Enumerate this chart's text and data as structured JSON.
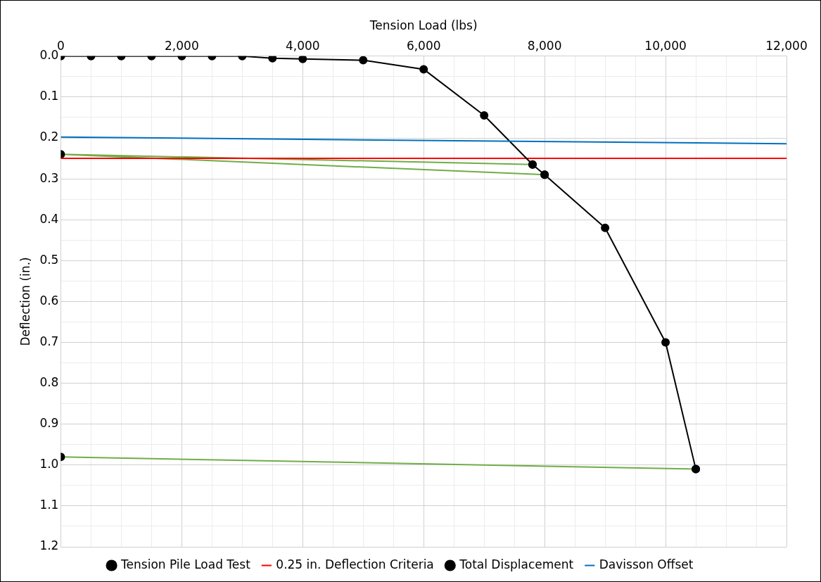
{
  "chart_data": {
    "type": "line",
    "xlabel": "Tension Load (lbs)",
    "ylabel": "Deflection (in.)",
    "xlim": [
      0,
      12000
    ],
    "ylim": [
      1.2,
      0
    ],
    "xticks": [
      {
        "value": 0,
        "label": "0"
      },
      {
        "value": 500,
        "label": null
      },
      {
        "value": 1000,
        "label": null
      },
      {
        "value": 1500,
        "label": null
      },
      {
        "value": 2000,
        "label": "2,000"
      },
      {
        "value": 2500,
        "label": null
      },
      {
        "value": 3000,
        "label": null
      },
      {
        "value": 3500,
        "label": null
      },
      {
        "value": 4000,
        "label": "4,000"
      },
      {
        "value": 4500,
        "label": null
      },
      {
        "value": 5000,
        "label": null
      },
      {
        "value": 5500,
        "label": null
      },
      {
        "value": 6000,
        "label": "6,000"
      },
      {
        "value": 6500,
        "label": null
      },
      {
        "value": 7000,
        "label": null
      },
      {
        "value": 7500,
        "label": null
      },
      {
        "value": 8000,
        "label": "8,000"
      },
      {
        "value": 8500,
        "label": null
      },
      {
        "value": 9000,
        "label": null
      },
      {
        "value": 9500,
        "label": null
      },
      {
        "value": 10000,
        "label": "10,000"
      },
      {
        "value": 10500,
        "label": null
      },
      {
        "value": 11000,
        "label": null
      },
      {
        "value": 11500,
        "label": null
      },
      {
        "value": 12000,
        "label": "12,000"
      }
    ],
    "yticks": [
      {
        "value": 0,
        "label": "0.0"
      },
      {
        "value": 0.05,
        "label": null
      },
      {
        "value": 0.1,
        "label": "0.1"
      },
      {
        "value": 0.15,
        "label": null
      },
      {
        "value": 0.2,
        "label": "0.2"
      },
      {
        "value": 0.25,
        "label": null
      },
      {
        "value": 0.3,
        "label": "0.3"
      },
      {
        "value": 0.35,
        "label": null
      },
      {
        "value": 0.4,
        "label": "0.4"
      },
      {
        "value": 0.45,
        "label": null
      },
      {
        "value": 0.5,
        "label": "0.5"
      },
      {
        "value": 0.55,
        "label": null
      },
      {
        "value": 0.6,
        "label": "0.6"
      },
      {
        "value": 0.65,
        "label": null
      },
      {
        "value": 0.7,
        "label": "0.7"
      },
      {
        "value": 0.75,
        "label": null
      },
      {
        "value": 0.8,
        "label": "0.8"
      },
      {
        "value": 0.85,
        "label": null
      },
      {
        "value": 0.9,
        "label": "0.9"
      },
      {
        "value": 0.95,
        "label": null
      },
      {
        "value": 1.0,
        "label": "1.0"
      },
      {
        "value": 1.05,
        "label": null
      },
      {
        "value": 1.1,
        "label": "1.1"
      },
      {
        "value": 1.15,
        "label": null
      },
      {
        "value": 1.2,
        "label": "1.2"
      }
    ],
    "grid": true,
    "legend": "bottom",
    "line_style": "solid",
    "series": [
      {
        "name": "Tension Pile Load Test",
        "color": "#70ad47",
        "marker": "circle",
        "x": [
          7800,
          0,
          8000,
          9000,
          10500,
          0
        ],
        "values": [
          0.265,
          0.24,
          0.29,
          null,
          1.01,
          0.98
        ]
      },
      {
        "name": "0.25 in. Deflection Criteria",
        "color": "#ff0000",
        "marker": "none",
        "x": [
          0,
          12000
        ],
        "values": [
          0.25,
          0.25
        ]
      },
      {
        "name": "Total Displacement",
        "color": "#000000",
        "marker": "circle",
        "x": [
          0,
          500,
          1000,
          1500,
          2000,
          2500,
          3000,
          3500,
          4000,
          5000,
          6000,
          7000,
          7800,
          8000,
          9000,
          10000,
          10500
        ],
        "values": [
          0,
          0,
          0,
          0,
          0,
          0,
          0,
          0.005,
          0.007,
          0.01,
          0.032,
          0.145,
          0.265,
          0.29,
          0.42,
          0.7,
          1.01
        ]
      },
      {
        "name": "Davisson Offset",
        "color": "#0070c0",
        "marker": "none",
        "x": [
          0,
          12000
        ],
        "values": [
          0.198,
          0.214
        ]
      }
    ]
  }
}
